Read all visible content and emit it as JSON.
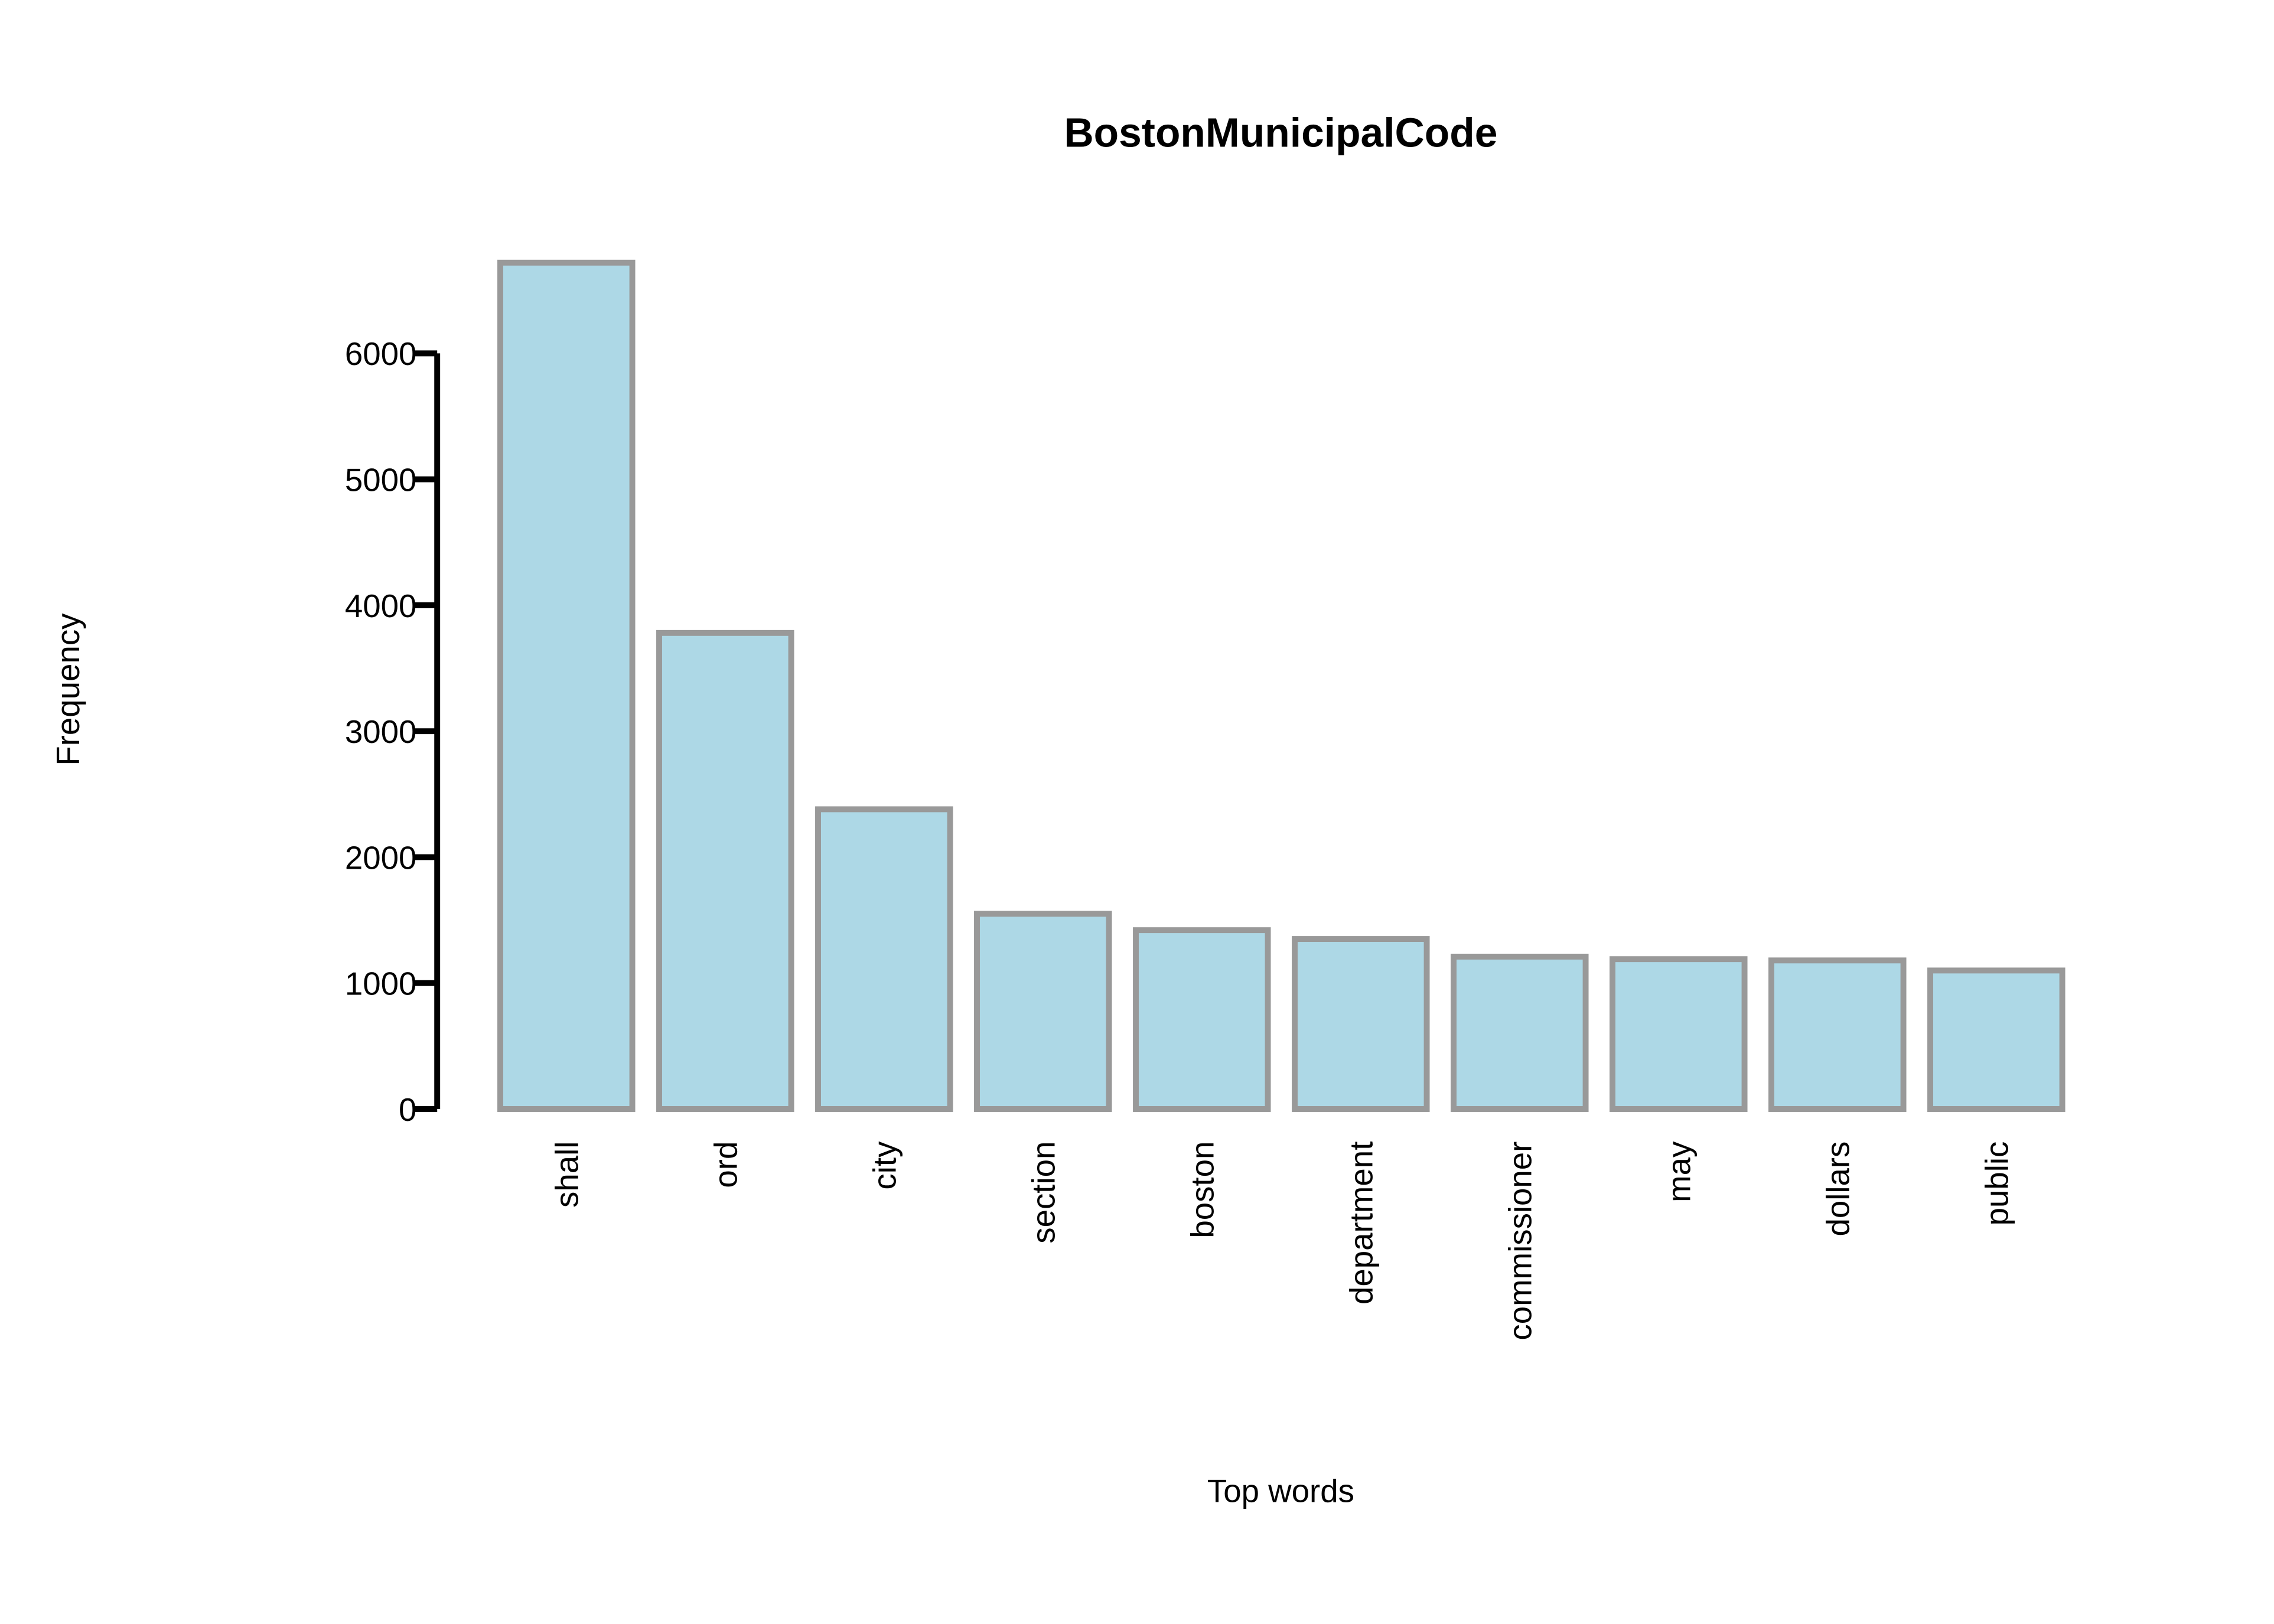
{
  "chart_data": {
    "type": "bar",
    "title": "BostonMunicipalCode",
    "x_label": "Top words",
    "y_label": "Frequency",
    "categories": [
      "shall",
      "ord",
      "city",
      "section",
      "boston",
      "department",
      "commissioner",
      "may",
      "dollars",
      "public"
    ],
    "values": [
      6720,
      3780,
      2380,
      1550,
      1420,
      1350,
      1210,
      1190,
      1180,
      1100
    ],
    "color": "#add8e6",
    "edge_color": "#999999",
    "ylim": [
      0,
      6720
    ],
    "yticks": [
      0,
      1000,
      2000,
      3000,
      4000,
      5000,
      6000
    ],
    "grid": false
  }
}
